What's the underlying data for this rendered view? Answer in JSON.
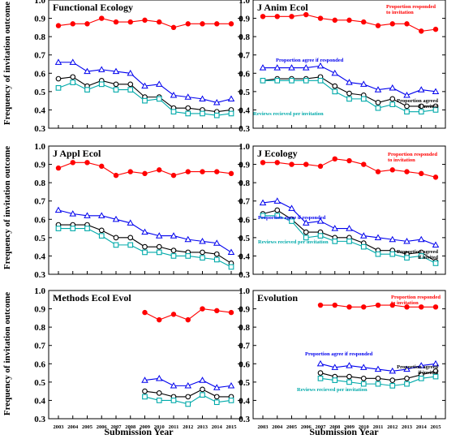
{
  "figure": {
    "ylabel": "Frequency of invitation outcome",
    "xlabel": "Submission Year",
    "colors": {
      "responded": "#ff0000",
      "agree": "#0000ee",
      "invited": "#000000",
      "reviews": "#00aaaa"
    }
  },
  "chart_data": [
    {
      "type": "line",
      "title": "Functional Ecology",
      "x": [
        2003,
        2004,
        2005,
        2006,
        2007,
        2008,
        2009,
        2010,
        2011,
        2012,
        2013,
        2014,
        2015
      ],
      "ylim": [
        0.3,
        1.0
      ],
      "grid": false,
      "series": [
        {
          "key": "responded",
          "values": [
            0.86,
            0.87,
            0.87,
            0.9,
            0.88,
            0.88,
            0.89,
            0.88,
            0.85,
            0.87,
            0.87,
            0.87,
            0.87
          ]
        },
        {
          "key": "agree",
          "values": [
            0.66,
            0.66,
            0.61,
            0.62,
            0.61,
            0.6,
            0.53,
            0.54,
            0.48,
            0.47,
            0.46,
            0.44,
            0.46
          ]
        },
        {
          "key": "invited",
          "values": [
            0.57,
            0.58,
            0.53,
            0.56,
            0.54,
            0.54,
            0.47,
            0.47,
            0.41,
            0.41,
            0.4,
            0.39,
            0.4
          ]
        },
        {
          "key": "reviews",
          "values": [
            0.52,
            0.55,
            0.51,
            0.54,
            0.51,
            0.51,
            0.45,
            0.46,
            0.39,
            0.38,
            0.38,
            0.37,
            0.38
          ]
        }
      ],
      "annotations": []
    },
    {
      "type": "line",
      "title": "J Anim Ecol",
      "x": [
        2003,
        2004,
        2005,
        2006,
        2007,
        2008,
        2009,
        2010,
        2011,
        2012,
        2013,
        2014,
        2015
      ],
      "ylim": [
        0.3,
        1.0
      ],
      "grid": false,
      "series": [
        {
          "key": "responded",
          "values": [
            0.91,
            0.91,
            0.91,
            0.92,
            0.9,
            0.89,
            0.89,
            0.88,
            0.86,
            0.87,
            0.87,
            0.83,
            0.84
          ]
        },
        {
          "key": "agree",
          "values": [
            0.63,
            0.63,
            0.63,
            0.63,
            0.64,
            0.6,
            0.55,
            0.54,
            0.51,
            0.52,
            0.48,
            0.51,
            0.5
          ]
        },
        {
          "key": "invited",
          "values": [
            0.56,
            0.57,
            0.57,
            0.57,
            0.58,
            0.53,
            0.49,
            0.48,
            0.44,
            0.46,
            0.42,
            0.42,
            0.42
          ]
        },
        {
          "key": "reviews",
          "values": [
            0.56,
            0.56,
            0.56,
            0.56,
            0.56,
            0.5,
            0.46,
            0.46,
            0.41,
            0.43,
            0.39,
            0.39,
            0.4
          ]
        }
      ],
      "annotations": [
        {
          "text": "Proportion responded to invitation",
          "key": "responded"
        },
        {
          "text": "Proportion agree if responded",
          "key": "agree"
        },
        {
          "text": "Proportion agreed if invited",
          "key": "invited"
        },
        {
          "text": "Reviews recieved per invitation",
          "key": "reviews"
        }
      ]
    },
    {
      "type": "line",
      "title": "J Appl Ecol",
      "x": [
        2003,
        2004,
        2005,
        2006,
        2007,
        2008,
        2009,
        2010,
        2011,
        2012,
        2013,
        2014,
        2015
      ],
      "ylim": [
        0.3,
        1.0
      ],
      "grid": false,
      "series": [
        {
          "key": "responded",
          "values": [
            0.88,
            0.91,
            0.91,
            0.89,
            0.84,
            0.86,
            0.85,
            0.87,
            0.84,
            0.86,
            0.86,
            0.86,
            0.85
          ]
        },
        {
          "key": "agree",
          "values": [
            0.65,
            0.63,
            0.62,
            0.62,
            0.6,
            0.58,
            0.53,
            0.51,
            0.51,
            0.49,
            0.48,
            0.47,
            0.42
          ]
        },
        {
          "key": "invited",
          "values": [
            0.57,
            0.57,
            0.57,
            0.54,
            0.5,
            0.5,
            0.45,
            0.45,
            0.43,
            0.42,
            0.42,
            0.41,
            0.36
          ]
        },
        {
          "key": "reviews",
          "values": [
            0.55,
            0.55,
            0.55,
            0.51,
            0.46,
            0.46,
            0.42,
            0.42,
            0.4,
            0.4,
            0.39,
            0.38,
            0.34
          ]
        }
      ],
      "annotations": []
    },
    {
      "type": "line",
      "title": "J Ecology",
      "x": [
        2003,
        2004,
        2005,
        2006,
        2007,
        2008,
        2009,
        2010,
        2011,
        2012,
        2013,
        2014,
        2015
      ],
      "ylim": [
        0.3,
        1.0
      ],
      "grid": false,
      "series": [
        {
          "key": "responded",
          "values": [
            0.91,
            0.91,
            0.9,
            0.9,
            0.89,
            0.93,
            0.92,
            0.9,
            0.86,
            0.87,
            0.86,
            0.85,
            0.83
          ]
        },
        {
          "key": "agree",
          "values": [
            0.69,
            0.7,
            0.66,
            0.58,
            0.59,
            0.55,
            0.55,
            0.51,
            0.5,
            0.49,
            0.48,
            0.49,
            0.46
          ]
        },
        {
          "key": "invited",
          "values": [
            0.63,
            0.65,
            0.6,
            0.53,
            0.53,
            0.5,
            0.5,
            0.47,
            0.43,
            0.43,
            0.41,
            0.42,
            0.37
          ]
        },
        {
          "key": "reviews",
          "values": [
            0.62,
            0.62,
            0.59,
            0.5,
            0.51,
            0.48,
            0.48,
            0.45,
            0.41,
            0.41,
            0.39,
            0.4,
            0.36
          ]
        }
      ],
      "annotations": [
        {
          "text": "Proportion responded to invitation",
          "key": "responded"
        },
        {
          "text": "Proportion agree if responded",
          "key": "agree"
        },
        {
          "text": "Proportion agreed if invited",
          "key": "invited"
        },
        {
          "text": "Reviews recieved per invitation",
          "key": "reviews"
        }
      ]
    },
    {
      "type": "line",
      "title": "Methods Ecol Evol",
      "x": [
        2009,
        2010,
        2011,
        2012,
        2013,
        2014,
        2015
      ],
      "ylim": [
        0.3,
        1.0
      ],
      "grid": false,
      "series": [
        {
          "key": "responded",
          "values": [
            0.88,
            0.84,
            0.87,
            0.84,
            0.9,
            0.89,
            0.88
          ]
        },
        {
          "key": "agree",
          "values": [
            0.51,
            0.52,
            0.48,
            0.48,
            0.51,
            0.47,
            0.48
          ]
        },
        {
          "key": "invited",
          "values": [
            0.45,
            0.44,
            0.42,
            0.42,
            0.46,
            0.42,
            0.42
          ]
        },
        {
          "key": "reviews",
          "values": [
            0.42,
            0.4,
            0.4,
            0.38,
            0.43,
            0.39,
            0.4
          ]
        }
      ],
      "annotations": []
    },
    {
      "type": "line",
      "title": "Evolution",
      "x": [
        2007,
        2008,
        2009,
        2010,
        2011,
        2012,
        2013,
        2014,
        2015
      ],
      "ylim": [
        0.3,
        1.0
      ],
      "grid": false,
      "series": [
        {
          "key": "responded",
          "values": [
            0.92,
            0.92,
            0.91,
            0.91,
            0.92,
            0.92,
            0.91,
            0.91,
            0.91
          ]
        },
        {
          "key": "agree",
          "values": [
            0.6,
            0.58,
            0.59,
            0.58,
            0.57,
            0.56,
            0.57,
            0.59,
            0.6
          ]
        },
        {
          "key": "invited",
          "values": [
            0.55,
            0.53,
            0.53,
            0.52,
            0.52,
            0.51,
            0.52,
            0.54,
            0.56
          ]
        },
        {
          "key": "reviews",
          "values": [
            0.52,
            0.51,
            0.5,
            0.49,
            0.49,
            0.48,
            0.49,
            0.52,
            0.53
          ]
        }
      ],
      "annotations": [
        {
          "text": "Proportion responded to invitation",
          "key": "responded"
        },
        {
          "text": "Proportion agree if responded",
          "key": "agree"
        },
        {
          "text": "Proportion agreed if invited",
          "key": "invited"
        },
        {
          "text": "Reviews recieved per invitation",
          "key": "reviews"
        }
      ]
    }
  ]
}
